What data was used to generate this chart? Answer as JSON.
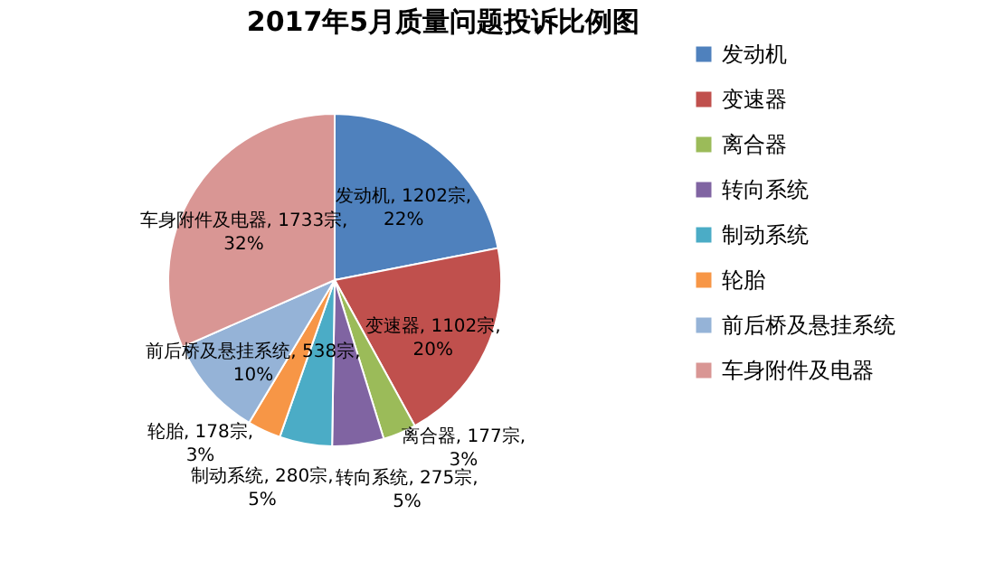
{
  "chart_data": {
    "type": "pie",
    "title": "2017年5月质量问题投诉比例图",
    "categories": [
      "发动机",
      "变速器",
      "离合器",
      "转向系统",
      "制动系统",
      "轮胎",
      "前后桥及悬挂系统",
      "车身附件及电器"
    ],
    "values": [
      1202,
      1102,
      177,
      275,
      280,
      178,
      538,
      1733
    ],
    "colors": [
      "#4f81bd",
      "#c0504d",
      "#9bbb59",
      "#8064a2",
      "#4bacc6",
      "#f79646",
      "#95b3d7",
      "#d99694"
    ],
    "value_labels": [
      "发动机, 1202宗, 22%",
      "变速器, 1102宗, 20%",
      "离合器, 177宗, 3%",
      "转向系统, 275宗, 5%",
      "制动系统, 280宗, 5%",
      "轮胎, 178宗, 3%",
      "前后桥及悬挂系统, 538宗, 10%",
      "车身附件及电器, 1733宗, 32%"
    ],
    "legend": "right"
  }
}
